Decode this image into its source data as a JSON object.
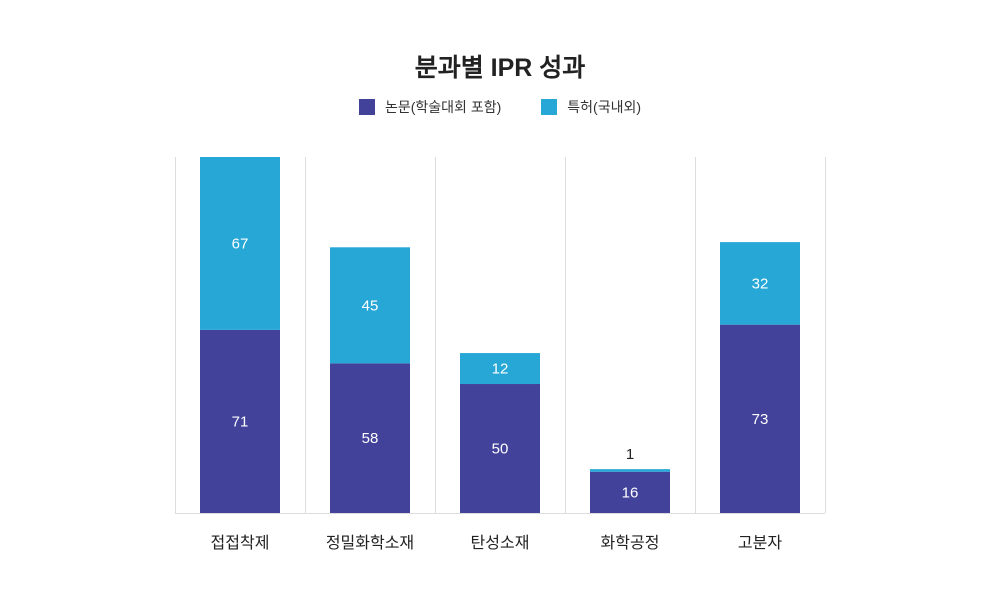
{
  "title": "분과별 IPR 성과",
  "legend": {
    "papers_label": "논문(학술대회 포함)",
    "patents_label": "특허(국내외)"
  },
  "colors": {
    "papers": "#42429a",
    "patents": "#26a7d6",
    "grid": "#dcdcdc",
    "bar_label": "#ffffff",
    "axis_label": "#222222"
  },
  "chart_data": {
    "type": "bar",
    "stacked": true,
    "title": "분과별 IPR 성과",
    "categories": [
      "접접착제",
      "정밀화학소재",
      "탄성소재",
      "화학공정",
      "고분자"
    ],
    "series": [
      {
        "name": "논문(학술대회 포함)",
        "values": [
          71,
          58,
          50,
          16,
          73
        ]
      },
      {
        "name": "특허(국내외)",
        "values": [
          67,
          45,
          12,
          1,
          32
        ]
      }
    ],
    "ylim": [
      0,
      138
    ],
    "grid": true,
    "legend_position": "top-center"
  }
}
